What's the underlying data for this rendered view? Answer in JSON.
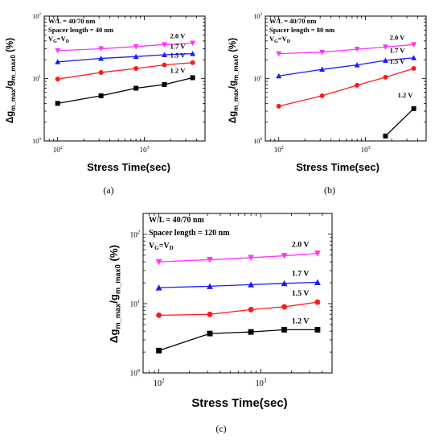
{
  "chart_data": [
    {
      "type": "line",
      "panel_label": "(a)",
      "annotation": [
        "W/L = 40/70 nm",
        "Spacer length = 40 nm",
        "V_G=V_D"
      ],
      "xlabel": "Stress Time(sec)",
      "ylabel": "Δg_m_max/g_m_max0 (%)",
      "xscale": "log",
      "yscale": "log",
      "xlim": [
        70,
        5000
      ],
      "ylim": [
        1,
        100
      ],
      "x": [
        100,
        316,
        800,
        1700,
        3600
      ],
      "series": [
        {
          "name": "2.0 V",
          "color": "#ff33ff",
          "marker": "triangle-down",
          "values": [
            28,
            30,
            32.5,
            35,
            37
          ]
        },
        {
          "name": "1.7 V",
          "color": "#1a1aff",
          "marker": "triangle-up",
          "values": [
            18.5,
            21,
            22.5,
            24,
            25
          ]
        },
        {
          "name": "1.5 V",
          "color": "#ff1a1a",
          "marker": "circle",
          "values": [
            9.8,
            12.5,
            14.5,
            16.5,
            18
          ]
        },
        {
          "name": "1.2 V",
          "color": "#000000",
          "marker": "square",
          "values": [
            4.0,
            5.3,
            7.0,
            8.0,
            10.3
          ]
        }
      ]
    },
    {
      "type": "line",
      "panel_label": "(b)",
      "annotation": [
        "W/L = 40/70 nm",
        "Spacer length = 80 nm",
        "V_G=V_D"
      ],
      "xlabel": "Stress Time(sec)",
      "ylabel": "Δg_m_max/g_m_max0 (%)",
      "xscale": "log",
      "yscale": "log",
      "xlim": [
        70,
        5000
      ],
      "ylim": [
        1,
        100
      ],
      "x": [
        100,
        316,
        800,
        1700,
        3600
      ],
      "series": [
        {
          "name": "2.0 V",
          "color": "#ff33ff",
          "marker": "triangle-down",
          "values": [
            25,
            26.5,
            29.5,
            32,
            35
          ]
        },
        {
          "name": "1.7 V",
          "color": "#1a1aff",
          "marker": "triangle-up",
          "values": [
            11,
            14,
            16.5,
            19.5,
            21.5
          ]
        },
        {
          "name": "1.5 V",
          "color": "#ff1a1a",
          "marker": "circle",
          "values": [
            3.6,
            5.3,
            7.8,
            10.5,
            14.5
          ]
        },
        {
          "name": "1.2 V",
          "color": "#000000",
          "marker": "square",
          "x": [
            1700,
            3600
          ],
          "values": [
            1.2,
            3.3
          ]
        }
      ]
    },
    {
      "type": "line",
      "panel_label": "(c)",
      "annotation": [
        "W/L = 40/70 nm",
        "Spacer length = 120 nm",
        "V_G=V_D"
      ],
      "xlabel": "Stress Time(sec)",
      "ylabel": "Δg_m_max/g_m_max0 (%)",
      "xscale": "log",
      "yscale": "log",
      "xlim": [
        70,
        5000
      ],
      "ylim": [
        1,
        200
      ],
      "x": [
        100,
        316,
        800,
        1700,
        3600
      ],
      "series": [
        {
          "name": "2.0 V",
          "color": "#ff33ff",
          "marker": "triangle-down",
          "values": [
            40,
            43,
            46,
            49,
            53
          ]
        },
        {
          "name": "1.7 V",
          "color": "#1a1aff",
          "marker": "triangle-up",
          "values": [
            17,
            17.8,
            18.8,
            19.6,
            20.3
          ]
        },
        {
          "name": "1.5 V",
          "color": "#ff1a1a",
          "marker": "circle",
          "values": [
            6.8,
            7.0,
            8.2,
            9.0,
            10.5
          ]
        },
        {
          "name": "1.2 V",
          "color": "#000000",
          "marker": "square",
          "values": [
            2.1,
            3.7,
            3.9,
            4.2,
            4.2
          ]
        }
      ]
    }
  ]
}
